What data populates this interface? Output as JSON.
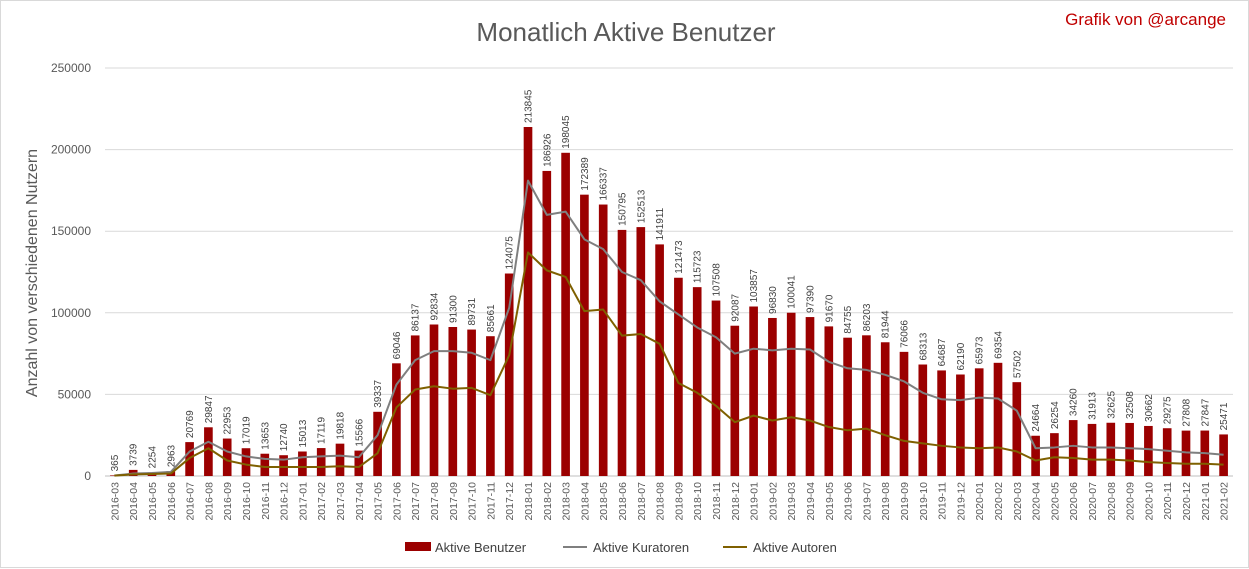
{
  "chart_data": {
    "type": "bar",
    "title": "Monatlich Aktive Benutzer",
    "credit": "Grafik von @arcange",
    "ylabel": "Anzahl von verschiedenen Nutzern",
    "xlabel": "",
    "ylim": [
      0,
      250000
    ],
    "yticks": [
      0,
      50000,
      100000,
      150000,
      200000,
      250000
    ],
    "grid": true,
    "legend_position": "bottom",
    "categories": [
      "2016-03",
      "2016-04",
      "2016-05",
      "2016-06",
      "2016-07",
      "2016-08",
      "2016-09",
      "2016-10",
      "2016-11",
      "2016-12",
      "2017-01",
      "2017-02",
      "2017-03",
      "2017-04",
      "2017-05",
      "2017-06",
      "2017-07",
      "2017-08",
      "2017-09",
      "2017-10",
      "2017-11",
      "2017-12",
      "2018-01",
      "2018-02",
      "2018-03",
      "2018-04",
      "2018-05",
      "2018-06",
      "2018-07",
      "2018-08",
      "2018-09",
      "2018-10",
      "2018-11",
      "2018-12",
      "2019-01",
      "2019-02",
      "2019-03",
      "2019-04",
      "2019-05",
      "2019-06",
      "2019-07",
      "2019-08",
      "2019-09",
      "2019-10",
      "2019-11",
      "2019-12",
      "2020-01",
      "2020-02",
      "2020-03",
      "2020-04",
      "2020-05",
      "2020-06",
      "2020-07",
      "2020-08",
      "2020-09",
      "2020-10",
      "2020-11",
      "2020-12",
      "2021-01",
      "2021-02"
    ],
    "series": [
      {
        "name": "Aktive Benutzer",
        "type": "bar",
        "color": "#9b0000",
        "values": [
          365,
          3739,
          2254,
          2963,
          20769,
          29847,
          22953,
          17019,
          13653,
          12740,
          15013,
          17119,
          19818,
          15566,
          39337,
          69046,
          86137,
          92834,
          91300,
          89731,
          85661,
          124075,
          213845,
          186926,
          198045,
          172389,
          166337,
          150795,
          152513,
          141911,
          121473,
          115723,
          107508,
          92087,
          103857,
          96830,
          100041,
          97390,
          91670,
          84755,
          86203,
          81944,
          76066,
          68313,
          64687,
          62190,
          65973,
          69354,
          57502,
          24664,
          26254,
          34260,
          31913,
          32625,
          32508,
          30662,
          29275,
          27808,
          27847,
          25471
        ]
      },
      {
        "name": "Aktive Kuratoren",
        "type": "line",
        "color": "#7f7f7f",
        "values": [
          300,
          1500,
          1800,
          2500,
          15000,
          21000,
          15000,
          12000,
          10500,
          10000,
          11500,
          12000,
          12500,
          11500,
          25000,
          56000,
          71000,
          76500,
          76500,
          75500,
          71000,
          103000,
          181000,
          160000,
          162000,
          145000,
          139000,
          125000,
          120000,
          107000,
          99000,
          91000,
          85000,
          75000,
          78000,
          77000,
          78000,
          77500,
          70000,
          66000,
          65000,
          62000,
          58000,
          51000,
          47000,
          46500,
          48000,
          47500,
          40000,
          17000,
          17500,
          18500,
          17500,
          17500,
          17000,
          16500,
          15500,
          14500,
          14000,
          13000
        ]
      },
      {
        "name": "Aktive Autoren",
        "type": "line",
        "color": "#7f6000",
        "values": [
          200,
          1000,
          1200,
          1500,
          11000,
          17000,
          9500,
          7000,
          5500,
          5500,
          5500,
          5500,
          6000,
          5500,
          14000,
          42000,
          53000,
          55000,
          53500,
          54000,
          49500,
          74000,
          137000,
          126000,
          122000,
          101000,
          102000,
          86000,
          87000,
          81000,
          57000,
          51000,
          43000,
          33000,
          37000,
          34000,
          36000,
          34000,
          30000,
          28000,
          29000,
          25000,
          21500,
          20000,
          18500,
          17500,
          17000,
          17500,
          15000,
          9500,
          11500,
          11000,
          10000,
          10000,
          9500,
          8500,
          8000,
          7500,
          7500,
          7000
        ]
      }
    ]
  }
}
